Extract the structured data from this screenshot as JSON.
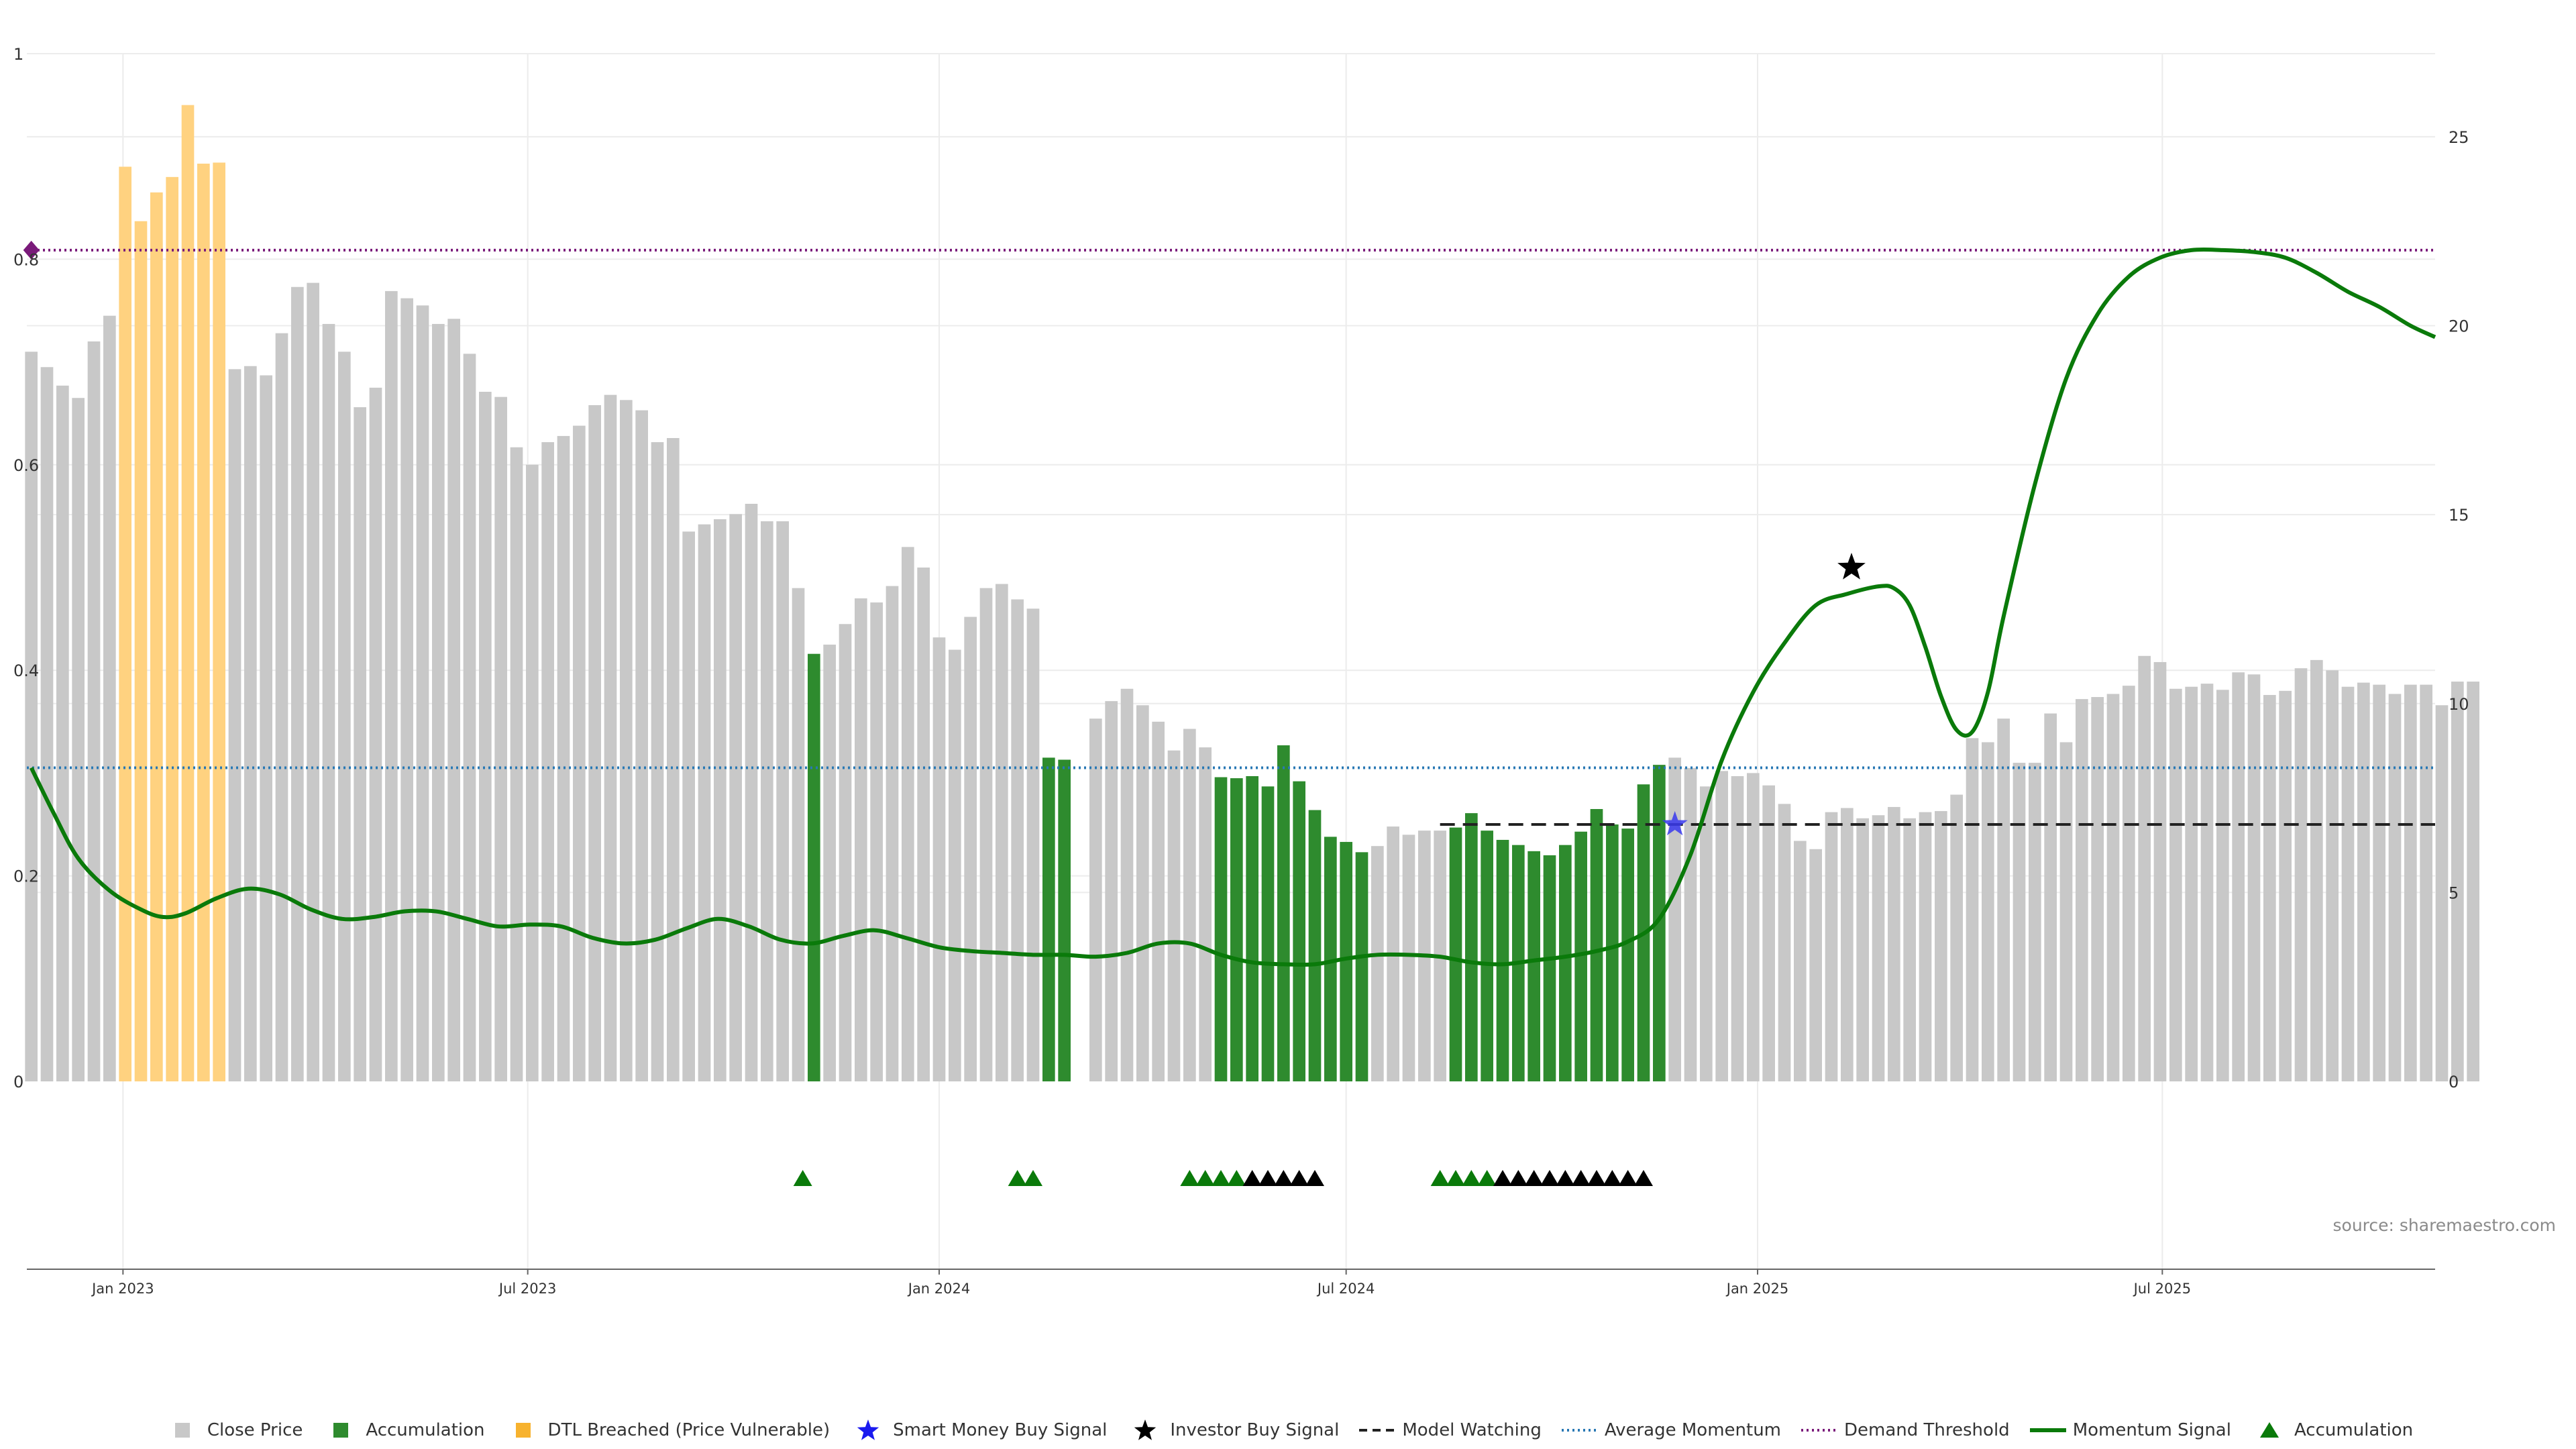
{
  "chart_data": {
    "type": "bar",
    "source": "source: sharemaestro.com",
    "colors": {
      "close": "#c8c8c8",
      "accumulation": "#2e8b2e",
      "dtl": "#ffd280",
      "momentum": "#0a7a0a",
      "avg_momentum": "#2878b4",
      "demand": "#7a1a7a",
      "model": "#222222",
      "smart_money": "#3a3aef",
      "investor": "#000000"
    },
    "left_axis": {
      "ylim": [
        0,
        1
      ],
      "ticks": [
        0,
        0.2,
        0.4,
        0.6,
        0.8,
        1
      ]
    },
    "right_axis": {
      "ylim": [
        0,
        27.2
      ],
      "ticks": [
        0,
        5,
        10,
        15,
        20,
        25
      ]
    },
    "x_range": [
      "2022-11-19",
      "2025-10-31"
    ],
    "x_ticks": [
      {
        "date": "2023-01-01",
        "label": "Jan 2023"
      },
      {
        "date": "2023-07-01",
        "label": "Jul 2023"
      },
      {
        "date": "2024-01-01",
        "label": "Jan 2024"
      },
      {
        "date": "2024-07-01",
        "label": "Jul 2024"
      },
      {
        "date": "2025-01-01",
        "label": "Jan 2025"
      },
      {
        "date": "2025-07-01",
        "label": "Jul 2025"
      }
    ],
    "bars": {
      "start_date": "2022-11-21",
      "interval_days": 7,
      "values": [
        0.71,
        0.695,
        0.677,
        0.665,
        0.72,
        0.745,
        0.89,
        0.837,
        0.865,
        0.88,
        0.95,
        0.893,
        0.894,
        0.693,
        0.696,
        0.687,
        0.728,
        0.773,
        0.777,
        0.737,
        0.71,
        0.656,
        0.675,
        0.769,
        0.762,
        0.755,
        0.737,
        0.742,
        0.708,
        0.671,
        0.666,
        0.617,
        0.6,
        0.622,
        0.628,
        0.638,
        0.658,
        0.668,
        0.663,
        0.653,
        0.622,
        0.626,
        0.535,
        0.542,
        0.547,
        0.552,
        0.562,
        0.545,
        0.545,
        0.48,
        0.416,
        0.425,
        0.445,
        0.47,
        0.466,
        0.482,
        0.52,
        0.5,
        0.432,
        0.42,
        0.452,
        0.48,
        0.484,
        0.469,
        0.46,
        0.315,
        0.313,
        0.0,
        0.353,
        0.37,
        0.382,
        0.366,
        0.35,
        0.322,
        0.343,
        0.325,
        0.296,
        0.295,
        0.297,
        0.287,
        0.327,
        0.292,
        0.264,
        0.238,
        0.233,
        0.223,
        0.229,
        0.248,
        0.24,
        0.244,
        0.244,
        0.247,
        0.261,
        0.244,
        0.235,
        0.23,
        0.224,
        0.22,
        0.23,
        0.243,
        0.265,
        0.25,
        0.246,
        0.289,
        0.308,
        0.315,
        0.305,
        0.287,
        0.302,
        0.297,
        0.3,
        0.288,
        0.27,
        0.234,
        0.226,
        0.262,
        0.266,
        0.256,
        0.259,
        0.267,
        0.256,
        0.262,
        0.263,
        0.279,
        0.334,
        0.33,
        0.353,
        0.31,
        0.31,
        0.358,
        0.33,
        0.372,
        0.374,
        0.377,
        0.385,
        0.414,
        0.408,
        0.382,
        0.384,
        0.387,
        0.381,
        0.398,
        0.396,
        0.376,
        0.38,
        0.402,
        0.41,
        0.4,
        0.384,
        0.388,
        0.386,
        0.377,
        0.386,
        0.386,
        0.366,
        0.389,
        0.389
      ],
      "accumulation_index_ranges": [
        [
          50,
          50
        ],
        [
          65,
          66
        ],
        [
          76,
          85
        ],
        [
          91,
          104
        ]
      ],
      "dtl_index_range": [
        6,
        12
      ]
    },
    "momentum_signal": [
      [
        "2022-11-21",
        8.3
      ],
      [
        "2022-12-01",
        7.1
      ],
      [
        "2022-12-12",
        5.9
      ],
      [
        "2022-12-26",
        5.05
      ],
      [
        "2023-01-09",
        4.55
      ],
      [
        "2023-01-19",
        4.35
      ],
      [
        "2023-01-29",
        4.45
      ],
      [
        "2023-02-12",
        4.85
      ],
      [
        "2023-02-26",
        5.1
      ],
      [
        "2023-03-12",
        4.95
      ],
      [
        "2023-03-26",
        4.55
      ],
      [
        "2023-04-09",
        4.3
      ],
      [
        "2023-04-23",
        4.35
      ],
      [
        "2023-05-07",
        4.5
      ],
      [
        "2023-05-21",
        4.5
      ],
      [
        "2023-06-04",
        4.3
      ],
      [
        "2023-06-18",
        4.1
      ],
      [
        "2023-07-02",
        4.15
      ],
      [
        "2023-07-16",
        4.1
      ],
      [
        "2023-07-30",
        3.8
      ],
      [
        "2023-08-13",
        3.65
      ],
      [
        "2023-08-27",
        3.75
      ],
      [
        "2023-09-10",
        4.05
      ],
      [
        "2023-09-24",
        4.3
      ],
      [
        "2023-10-08",
        4.1
      ],
      [
        "2023-10-22",
        3.75
      ],
      [
        "2023-11-05",
        3.65
      ],
      [
        "2023-11-19",
        3.85
      ],
      [
        "2023-12-03",
        4.0
      ],
      [
        "2023-12-17",
        3.8
      ],
      [
        "2024-01-01",
        3.55
      ],
      [
        "2024-01-15",
        3.45
      ],
      [
        "2024-01-29",
        3.4
      ],
      [
        "2024-02-12",
        3.35
      ],
      [
        "2024-02-26",
        3.35
      ],
      [
        "2024-03-11",
        3.3
      ],
      [
        "2024-03-25",
        3.4
      ],
      [
        "2024-04-08",
        3.65
      ],
      [
        "2024-04-22",
        3.65
      ],
      [
        "2024-05-06",
        3.35
      ],
      [
        "2024-05-20",
        3.15
      ],
      [
        "2024-06-03",
        3.1
      ],
      [
        "2024-06-17",
        3.1
      ],
      [
        "2024-07-01",
        3.25
      ],
      [
        "2024-07-15",
        3.35
      ],
      [
        "2024-07-29",
        3.35
      ],
      [
        "2024-08-12",
        3.3
      ],
      [
        "2024-08-26",
        3.15
      ],
      [
        "2024-09-09",
        3.1
      ],
      [
        "2024-09-23",
        3.2
      ],
      [
        "2024-10-07",
        3.3
      ],
      [
        "2024-10-21",
        3.45
      ],
      [
        "2024-11-04",
        3.7
      ],
      [
        "2024-11-18",
        4.3
      ],
      [
        "2024-12-02",
        6.0
      ],
      [
        "2024-12-16",
        8.5
      ],
      [
        "2024-12-30",
        10.3
      ],
      [
        "2025-01-13",
        11.6
      ],
      [
        "2025-01-27",
        12.6
      ],
      [
        "2025-02-10",
        12.9
      ],
      [
        "2025-02-24",
        13.1
      ],
      [
        "2025-03-03",
        13.05
      ],
      [
        "2025-03-10",
        12.6
      ],
      [
        "2025-03-17",
        11.5
      ],
      [
        "2025-03-24",
        10.2
      ],
      [
        "2025-03-31",
        9.3
      ],
      [
        "2025-04-07",
        9.25
      ],
      [
        "2025-04-14",
        10.3
      ],
      [
        "2025-04-21",
        12.3
      ],
      [
        "2025-05-05",
        15.8
      ],
      [
        "2025-05-19",
        18.6
      ],
      [
        "2025-06-02",
        20.3
      ],
      [
        "2025-06-16",
        21.3
      ],
      [
        "2025-06-30",
        21.8
      ],
      [
        "2025-07-14",
        22.0
      ],
      [
        "2025-07-28",
        22.0
      ],
      [
        "2025-08-11",
        21.95
      ],
      [
        "2025-08-25",
        21.8
      ],
      [
        "2025-09-08",
        21.4
      ],
      [
        "2025-09-22",
        20.9
      ],
      [
        "2025-10-06",
        20.5
      ],
      [
        "2025-10-20",
        20.0
      ],
      [
        "2025-10-31",
        19.7
      ]
    ],
    "average_momentum": 8.3,
    "demand_threshold": 22.0,
    "model_watching": {
      "start": "2024-08-12",
      "end": "2025-10-31",
      "value": 0.25
    },
    "demand_marker": {
      "date": "2022-11-21",
      "value": 22.0
    },
    "smart_money_buy_signals": [
      {
        "date": "2024-11-25",
        "value": 0.25
      }
    ],
    "investor_buy_signals": [
      {
        "date": "2025-02-12",
        "value": 0.5
      }
    ],
    "bottom_markers": {
      "green_dates": [
        "2023-11-01",
        "2024-02-05",
        "2024-02-12",
        "2024-04-22",
        "2024-04-29",
        "2024-05-06",
        "2024-05-13",
        "2024-08-12",
        "2024-08-19",
        "2024-08-26",
        "2024-09-02"
      ],
      "black_dates": [
        "2024-05-20",
        "2024-05-27",
        "2024-06-03",
        "2024-06-10",
        "2024-06-17",
        "2024-09-09",
        "2024-09-16",
        "2024-09-23",
        "2024-09-30",
        "2024-10-07",
        "2024-10-14",
        "2024-10-21",
        "2024-10-28",
        "2024-11-04",
        "2024-11-11"
      ]
    }
  },
  "legend": [
    {
      "key": "close",
      "label": "Close Price",
      "icon": "square-grey"
    },
    {
      "key": "accumulation",
      "label": "Accumulation",
      "icon": "square-green"
    },
    {
      "key": "dtl",
      "label": "DTL Breached (Price Vulnerable)",
      "icon": "square-orange"
    },
    {
      "key": "smart",
      "label": "Smart Money Buy Signal",
      "icon": "star-blue"
    },
    {
      "key": "investor",
      "label": "Investor Buy Signal",
      "icon": "star-black"
    },
    {
      "key": "model",
      "label": "Model Watching",
      "icon": "dash-black"
    },
    {
      "key": "avg",
      "label": "Average Momentum",
      "icon": "dot-blue"
    },
    {
      "key": "demand",
      "label": "Demand Threshold",
      "icon": "dot-purple"
    },
    {
      "key": "momentum",
      "label": "Momentum Signal",
      "icon": "line-green"
    },
    {
      "key": "accum_tri",
      "label": "Accumulation",
      "icon": "triangle-green"
    }
  ]
}
